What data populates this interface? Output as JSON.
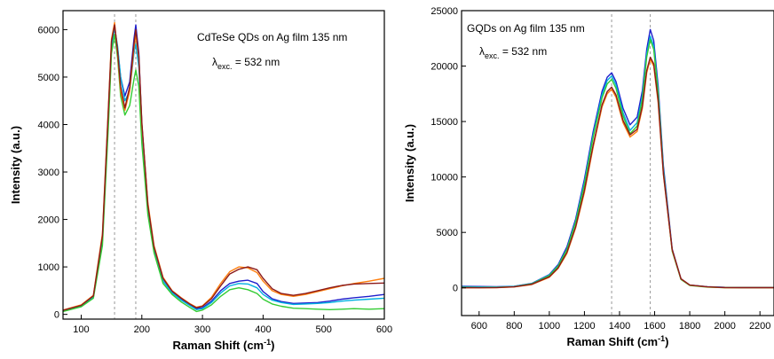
{
  "chart_data": [
    {
      "type": "line",
      "annotation": "CdTeSe QDs on Ag film 135 nm",
      "excitation": {
        "symbol": "λ",
        "sub": "exc.",
        "value": "= 532 nm"
      },
      "xlabel": "Raman Shift (cm-1)",
      "xlabel_base": "Raman Shift (cm",
      "xlabel_sup": "-1",
      "xlabel_close": ")",
      "ylabel": "Intensity (a.u.)",
      "xlim": [
        70,
        600
      ],
      "ylim": [
        -100,
        6400
      ],
      "xticks": [
        100,
        200,
        300,
        400,
        500,
        600
      ],
      "yticks": [
        0,
        1000,
        2000,
        3000,
        4000,
        5000,
        6000
      ],
      "reference_lines": [
        155,
        190
      ],
      "series": [
        {
          "color": "#1f1fcc",
          "x": [
            70,
            100,
            120,
            135,
            145,
            150,
            155,
            160,
            165,
            172,
            180,
            187,
            190,
            195,
            200,
            210,
            220,
            235,
            250,
            265,
            280,
            290,
            300,
            315,
            330,
            345,
            360,
            375,
            390,
            400,
            415,
            430,
            450,
            470,
            490,
            510,
            530,
            550,
            575,
            600
          ],
          "y": [
            80,
            180,
            380,
            1600,
            4300,
            5700,
            6050,
            5600,
            5000,
            4600,
            4900,
            5800,
            6100,
            5500,
            4000,
            2300,
            1400,
            750,
            480,
            330,
            200,
            120,
            140,
            280,
            500,
            650,
            700,
            720,
            650,
            480,
            330,
            270,
            230,
            240,
            250,
            280,
            320,
            350,
            380,
            420
          ]
        },
        {
          "color": "#00b0e0",
          "x": [
            70,
            100,
            120,
            135,
            145,
            150,
            155,
            160,
            165,
            172,
            180,
            187,
            190,
            195,
            200,
            210,
            220,
            235,
            250,
            265,
            280,
            290,
            300,
            315,
            330,
            345,
            360,
            375,
            390,
            400,
            415,
            430,
            450,
            470,
            490,
            510,
            530,
            550,
            575,
            600
          ],
          "y": [
            70,
            170,
            360,
            1550,
            4200,
            5600,
            6050,
            5650,
            5000,
            4500,
            4700,
            5500,
            5700,
            5200,
            3900,
            2250,
            1350,
            700,
            450,
            300,
            180,
            100,
            120,
            250,
            450,
            600,
            650,
            640,
            560,
            420,
            300,
            250,
            210,
            220,
            230,
            250,
            280,
            300,
            320,
            340
          ]
        },
        {
          "color": "#33cc33",
          "x": [
            70,
            100,
            120,
            135,
            145,
            150,
            155,
            160,
            165,
            172,
            180,
            187,
            190,
            195,
            200,
            210,
            220,
            235,
            250,
            265,
            280,
            290,
            300,
            315,
            330,
            345,
            360,
            375,
            390,
            400,
            415,
            430,
            450,
            470,
            490,
            510,
            530,
            550,
            575,
            600
          ],
          "y": [
            60,
            160,
            340,
            1450,
            4000,
            5500,
            5900,
            5400,
            4600,
            4200,
            4400,
            4950,
            5150,
            4800,
            3600,
            2100,
            1300,
            650,
            420,
            260,
            140,
            60,
            90,
            200,
            380,
            520,
            560,
            520,
            440,
            320,
            220,
            170,
            130,
            120,
            110,
            100,
            110,
            120,
            110,
            120
          ]
        },
        {
          "color": "#ff7f0e",
          "x": [
            70,
            100,
            120,
            135,
            145,
            150,
            155,
            160,
            165,
            172,
            180,
            187,
            190,
            195,
            200,
            210,
            220,
            235,
            250,
            265,
            280,
            290,
            300,
            315,
            330,
            345,
            360,
            375,
            390,
            400,
            415,
            430,
            450,
            470,
            490,
            510,
            530,
            550,
            575,
            600
          ],
          "y": [
            90,
            200,
            400,
            1700,
            4400,
            5800,
            6150,
            5500,
            4700,
            4300,
            4700,
            5600,
            5900,
            5400,
            4000,
            2350,
            1450,
            780,
            500,
            350,
            220,
            150,
            180,
            360,
            650,
            900,
            1000,
            980,
            880,
            700,
            500,
            420,
            380,
            420,
            480,
            540,
            600,
            650,
            700,
            760
          ]
        },
        {
          "color": "#8b1a1a",
          "x": [
            70,
            100,
            120,
            135,
            145,
            150,
            155,
            160,
            165,
            172,
            180,
            187,
            190,
            195,
            200,
            210,
            220,
            235,
            250,
            265,
            280,
            290,
            300,
            315,
            330,
            345,
            360,
            375,
            390,
            400,
            415,
            430,
            450,
            470,
            490,
            510,
            530,
            550,
            575,
            600
          ],
          "y": [
            85,
            190,
            390,
            1650,
            4350,
            5750,
            6100,
            5550,
            4800,
            4350,
            4800,
            5700,
            6000,
            5450,
            4050,
            2300,
            1420,
            760,
            490,
            340,
            210,
            140,
            170,
            330,
            600,
            850,
            950,
            1000,
            940,
            760,
            540,
            440,
            400,
            440,
            500,
            560,
            610,
            640,
            650,
            660
          ]
        }
      ]
    },
    {
      "type": "line",
      "annotation": "GQDs on Ag film 135 nm",
      "excitation": {
        "symbol": "λ",
        "sub": "exc.",
        "value": "= 532 nm"
      },
      "xlabel": "Raman Shift (cm-1)",
      "xlabel_base": "Raman Shift (cm",
      "xlabel_sup": "-1",
      "xlabel_close": ")",
      "ylabel": "Intensity (a.u.)",
      "xlim": [
        500,
        2280
      ],
      "ylim": [
        -2500,
        25000
      ],
      "xticks": [
        600,
        800,
        1000,
        1200,
        1400,
        1600,
        1800,
        2000,
        2200
      ],
      "yticks": [
        0,
        5000,
        10000,
        15000,
        20000,
        25000
      ],
      "reference_lines": [
        1355,
        1575
      ],
      "series": [
        {
          "color": "#1f1fcc",
          "x": [
            500,
            600,
            700,
            800,
            900,
            1000,
            1050,
            1100,
            1150,
            1200,
            1250,
            1300,
            1330,
            1355,
            1380,
            1420,
            1460,
            1500,
            1530,
            1555,
            1575,
            1595,
            1620,
            1650,
            1700,
            1750,
            1800,
            1900,
            2000,
            2100,
            2200,
            2280
          ],
          "y": [
            150,
            120,
            100,
            150,
            400,
            1200,
            2100,
            3700,
            6200,
            9800,
            14100,
            17700,
            19000,
            19400,
            18600,
            16200,
            14700,
            15400,
            17800,
            21500,
            23300,
            22300,
            18200,
            11000,
            3500,
            800,
            250,
            100,
            50,
            40,
            40,
            40
          ]
        },
        {
          "color": "#00b0e0",
          "x": [
            500,
            600,
            700,
            800,
            900,
            1000,
            1050,
            1100,
            1150,
            1200,
            1250,
            1300,
            1330,
            1355,
            1380,
            1420,
            1460,
            1500,
            1530,
            1555,
            1575,
            1595,
            1620,
            1650,
            1700,
            1750,
            1800,
            1900,
            2000,
            2100,
            2200,
            2280
          ],
          "y": [
            100,
            80,
            80,
            130,
            380,
            1150,
            2000,
            3500,
            6000,
            9500,
            13800,
            17400,
            18700,
            19100,
            18300,
            15800,
            14200,
            14900,
            17300,
            21100,
            22700,
            21800,
            17800,
            10700,
            3400,
            780,
            240,
            90,
            40,
            30,
            30,
            30
          ]
        },
        {
          "color": "#33cc33",
          "x": [
            500,
            600,
            700,
            800,
            900,
            1000,
            1050,
            1100,
            1150,
            1200,
            1250,
            1300,
            1330,
            1355,
            1380,
            1420,
            1460,
            1500,
            1530,
            1555,
            1575,
            1595,
            1620,
            1650,
            1700,
            1750,
            1800,
            1900,
            2000,
            2100,
            2200,
            2280
          ],
          "y": [
            50,
            30,
            40,
            110,
            360,
            1100,
            1950,
            3450,
            5900,
            9300,
            13600,
            17100,
            18400,
            18800,
            18000,
            15500,
            13900,
            14600,
            17000,
            20800,
            22400,
            21500,
            17500,
            10500,
            3300,
            750,
            220,
            70,
            20,
            20,
            20,
            20
          ]
        },
        {
          "color": "#ff7f0e",
          "x": [
            500,
            600,
            700,
            800,
            900,
            1000,
            1050,
            1100,
            1150,
            1200,
            1250,
            1300,
            1330,
            1355,
            1380,
            1420,
            1460,
            1500,
            1530,
            1555,
            1575,
            1595,
            1620,
            1650,
            1700,
            1750,
            1800,
            1900,
            2000,
            2100,
            2200,
            2280
          ],
          "y": [
            0,
            0,
            20,
            80,
            300,
            950,
            1750,
            3100,
            5400,
            8600,
            12700,
            16300,
            17500,
            17900,
            17200,
            14900,
            13600,
            14100,
            16200,
            19400,
            20600,
            20000,
            16700,
            10200,
            3400,
            800,
            240,
            80,
            20,
            10,
            10,
            10
          ]
        },
        {
          "color": "#8b1a1a",
          "x": [
            500,
            600,
            700,
            800,
            900,
            1000,
            1050,
            1100,
            1150,
            1200,
            1250,
            1300,
            1330,
            1355,
            1380,
            1420,
            1460,
            1500,
            1530,
            1555,
            1575,
            1595,
            1620,
            1650,
            1700,
            1750,
            1800,
            1900,
            2000,
            2100,
            2200,
            2280
          ],
          "y": [
            20,
            10,
            30,
            90,
            320,
            1000,
            1800,
            3200,
            5500,
            8800,
            12900,
            16500,
            17700,
            18100,
            17400,
            15100,
            13800,
            14300,
            16400,
            19600,
            20800,
            20200,
            16900,
            10300,
            3450,
            820,
            250,
            90,
            30,
            20,
            20,
            20
          ]
        }
      ]
    }
  ]
}
